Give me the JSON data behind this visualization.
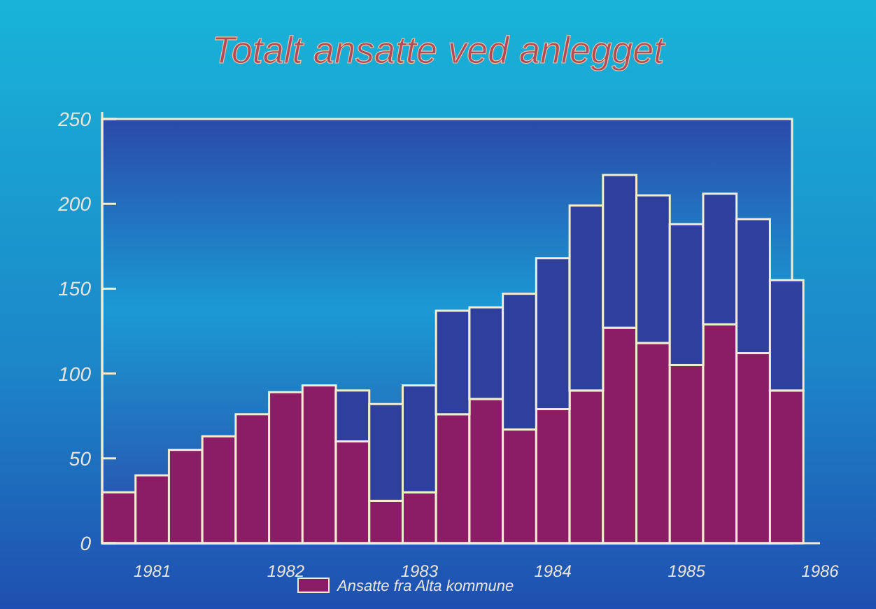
{
  "chart_data": {
    "type": "bar",
    "title": "Totalt ansatte ved anlegget",
    "stacked": true,
    "x": [
      1980.75,
      1981,
      1981.25,
      1981.5,
      1981.75,
      1982,
      1982.25,
      1982.5,
      1982.75,
      1983,
      1983.25,
      1983.5,
      1983.75,
      1984,
      1984.25,
      1984.5,
      1984.75,
      1985,
      1985.25,
      1985.5,
      1985.75
    ],
    "series": [
      {
        "name": "Ansatte fra Alta kommune",
        "color": "#8a1d66",
        "values": [
          30,
          40,
          55,
          63,
          76,
          89,
          93,
          60,
          25,
          30,
          76,
          85,
          67,
          79,
          90,
          127,
          118,
          105,
          129,
          112,
          90
        ]
      },
      {
        "color": "#2f3f9e",
        "values": [
          null,
          null,
          null,
          null,
          null,
          null,
          null,
          30,
          57,
          63,
          61,
          54,
          80,
          89,
          109,
          90,
          87,
          83,
          77,
          79,
          65
        ]
      }
    ],
    "xlim": [
      1980.625,
      1986
    ],
    "xticks": [
      1981,
      1982,
      1983,
      1984,
      1985,
      1986
    ],
    "ylim": [
      0,
      250
    ],
    "yticks": [
      0,
      50,
      100,
      150,
      200,
      250
    ],
    "grid": false,
    "legend": "bottom"
  }
}
